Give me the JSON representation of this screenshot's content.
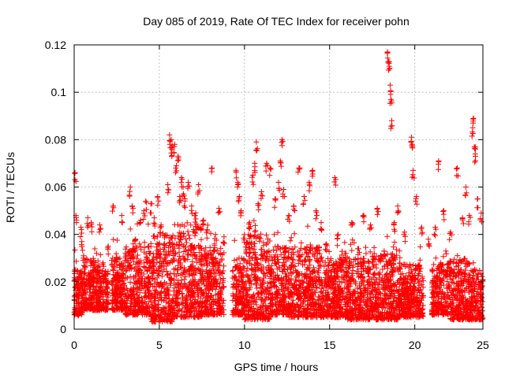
{
  "chart_data": {
    "type": "scatter",
    "title": "Day 085 of 2019, Rate Of TEC Index for receiver pohn",
    "xlabel": "GPS time / hours",
    "ylabel": "ROTI / TECUs",
    "xlim": [
      0,
      24
    ],
    "ylim": [
      0,
      0.12
    ],
    "x_ticks": [
      0,
      5,
      10,
      15,
      20,
      25
    ],
    "x_tick_labels": [
      "0",
      "5",
      "10",
      "15",
      "20",
      "25"
    ],
    "y_ticks": [
      0,
      0.02,
      0.04,
      0.06,
      0.08,
      0.1,
      0.12
    ],
    "y_tick_labels": [
      "0",
      "0.02",
      "0.04",
      "0.06",
      "0.08",
      "0.1",
      "0.12"
    ],
    "grid": true,
    "marker": "plus",
    "color": "#ff0000",
    "series": [
      {
        "name": "ROTI",
        "points": [
          [
            0.05,
            0.066
          ],
          [
            0.1,
            0.048
          ],
          [
            0.15,
            0.014
          ],
          [
            0.2,
            0.021
          ],
          [
            0.3,
            0.009
          ],
          [
            0.4,
            0.043
          ],
          [
            0.45,
            0.037
          ],
          [
            0.55,
            0.031
          ],
          [
            0.7,
            0.013
          ],
          [
            0.8,
            0.047
          ],
          [
            0.9,
            0.022
          ],
          [
            1.0,
            0.045
          ],
          [
            1.1,
            0.025
          ],
          [
            1.3,
            0.018
          ],
          [
            1.5,
            0.044
          ],
          [
            1.7,
            0.028
          ],
          [
            2.0,
            0.035
          ],
          [
            2.3,
            0.052
          ],
          [
            2.5,
            0.024
          ],
          [
            2.8,
            0.048
          ],
          [
            3.0,
            0.032
          ],
          [
            3.3,
            0.06
          ],
          [
            3.4,
            0.052
          ],
          [
            3.6,
            0.038
          ],
          [
            3.9,
            0.046
          ],
          [
            4.1,
            0.05
          ],
          [
            4.2,
            0.054
          ],
          [
            4.5,
            0.053
          ],
          [
            4.7,
            0.047
          ],
          [
            4.9,
            0.056
          ],
          [
            5.1,
            0.044
          ],
          [
            5.3,
            0.036
          ],
          [
            5.5,
            0.061
          ],
          [
            5.6,
            0.082
          ],
          [
            5.7,
            0.08
          ],
          [
            5.75,
            0.076
          ],
          [
            5.9,
            0.078
          ],
          [
            6.0,
            0.069
          ],
          [
            6.1,
            0.073
          ],
          [
            6.2,
            0.056
          ],
          [
            6.3,
            0.064
          ],
          [
            6.4,
            0.06
          ],
          [
            6.5,
            0.055
          ],
          [
            6.7,
            0.062
          ],
          [
            6.9,
            0.052
          ],
          [
            7.1,
            0.048
          ],
          [
            7.3,
            0.061
          ],
          [
            7.6,
            0.046
          ],
          [
            7.8,
            0.042
          ],
          [
            8.1,
            0.068
          ],
          [
            8.3,
            0.04
          ],
          [
            8.5,
            0.051
          ],
          [
            8.8,
            0.039
          ],
          [
            9.5,
            0.067
          ],
          [
            9.6,
            0.062
          ],
          [
            9.7,
            0.056
          ],
          [
            9.8,
            0.05
          ],
          [
            10.0,
            0.04
          ],
          [
            10.3,
            0.045
          ],
          [
            10.5,
            0.065
          ],
          [
            10.6,
            0.07
          ],
          [
            10.7,
            0.079
          ],
          [
            10.8,
            0.053
          ],
          [
            11.0,
            0.058
          ],
          [
            11.3,
            0.07
          ],
          [
            11.5,
            0.068
          ],
          [
            11.8,
            0.055
          ],
          [
            12.0,
            0.062
          ],
          [
            12.1,
            0.071
          ],
          [
            12.2,
            0.08
          ],
          [
            12.3,
            0.059
          ],
          [
            12.6,
            0.048
          ],
          [
            12.9,
            0.052
          ],
          [
            13.2,
            0.068
          ],
          [
            13.5,
            0.056
          ],
          [
            13.8,
            0.062
          ],
          [
            14.0,
            0.067
          ],
          [
            14.2,
            0.05
          ],
          [
            14.5,
            0.045
          ],
          [
            14.8,
            0.036
          ],
          [
            15.3,
            0.064
          ],
          [
            15.5,
            0.04
          ],
          [
            15.9,
            0.032
          ],
          [
            16.3,
            0.045
          ],
          [
            16.7,
            0.034
          ],
          [
            17.0,
            0.048
          ],
          [
            17.4,
            0.044
          ],
          [
            17.8,
            0.051
          ],
          [
            18.2,
            0.033
          ],
          [
            18.4,
            0.117
          ],
          [
            18.45,
            0.113
          ],
          [
            18.5,
            0.111
          ],
          [
            18.55,
            0.103
          ],
          [
            18.6,
            0.097
          ],
          [
            18.65,
            0.088
          ],
          [
            18.8,
            0.045
          ],
          [
            19.0,
            0.052
          ],
          [
            19.4,
            0.041
          ],
          [
            19.8,
            0.081
          ],
          [
            19.85,
            0.078
          ],
          [
            19.9,
            0.067
          ],
          [
            20.1,
            0.056
          ],
          [
            20.4,
            0.043
          ],
          [
            20.8,
            0.038
          ],
          [
            21.2,
            0.043
          ],
          [
            21.4,
            0.071
          ],
          [
            21.7,
            0.05
          ],
          [
            22.1,
            0.041
          ],
          [
            22.5,
            0.068
          ],
          [
            22.8,
            0.047
          ],
          [
            23.0,
            0.06
          ],
          [
            23.2,
            0.048
          ],
          [
            23.4,
            0.085
          ],
          [
            23.45,
            0.089
          ],
          [
            23.5,
            0.077
          ],
          [
            23.55,
            0.074
          ],
          [
            23.7,
            0.055
          ],
          [
            23.9,
            0.049
          ]
        ],
        "dense_bands": [
          [
            0.0,
            0.5,
            0.006,
            0.025
          ],
          [
            0.5,
            1.5,
            0.008,
            0.03
          ],
          [
            1.5,
            2.0,
            0.008,
            0.025
          ],
          [
            2.2,
            3.0,
            0.008,
            0.03
          ],
          [
            3.0,
            4.5,
            0.006,
            0.035
          ],
          [
            4.5,
            5.8,
            0.003,
            0.04
          ],
          [
            5.8,
            7.5,
            0.005,
            0.045
          ],
          [
            7.5,
            8.8,
            0.006,
            0.035
          ],
          [
            9.3,
            10.0,
            0.006,
            0.03
          ],
          [
            10.0,
            11.5,
            0.004,
            0.04
          ],
          [
            11.5,
            12.6,
            0.006,
            0.035
          ],
          [
            12.6,
            14.5,
            0.005,
            0.035
          ],
          [
            14.5,
            16.0,
            0.005,
            0.03
          ],
          [
            16.0,
            17.5,
            0.004,
            0.03
          ],
          [
            17.5,
            19.0,
            0.004,
            0.032
          ],
          [
            19.0,
            20.5,
            0.005,
            0.028
          ],
          [
            21.0,
            22.0,
            0.006,
            0.028
          ],
          [
            22.0,
            23.2,
            0.004,
            0.03
          ],
          [
            23.2,
            24.0,
            0.004,
            0.025
          ]
        ]
      }
    ]
  }
}
